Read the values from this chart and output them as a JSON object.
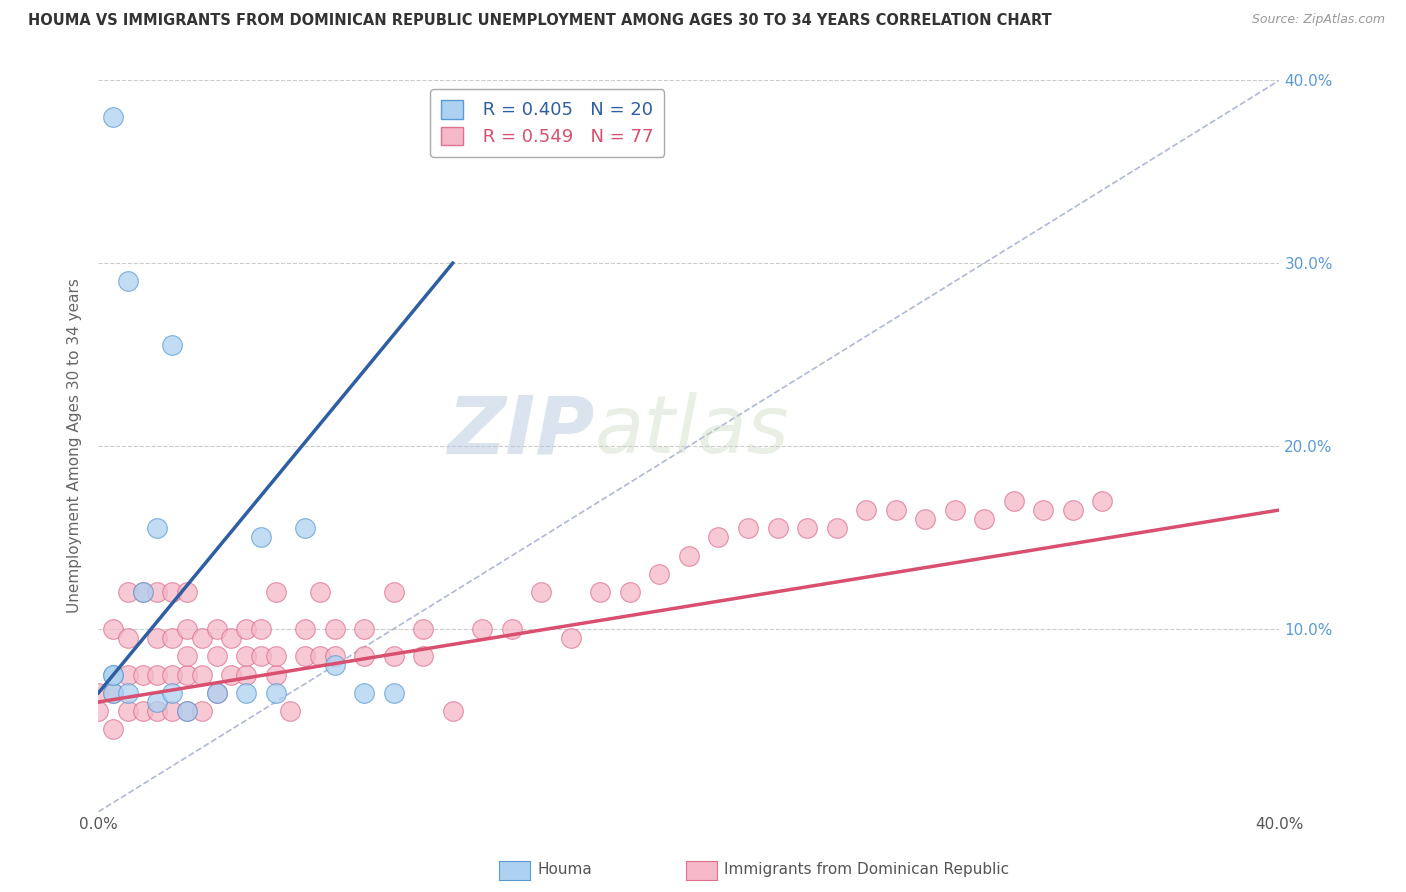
{
  "title": "HOUMA VS IMMIGRANTS FROM DOMINICAN REPUBLIC UNEMPLOYMENT AMONG AGES 30 TO 34 YEARS CORRELATION CHART",
  "source": "Source: ZipAtlas.com",
  "ylabel": "Unemployment Among Ages 30 to 34 years",
  "xlim": [
    0.0,
    0.4
  ],
  "ylim": [
    0.0,
    0.4
  ],
  "xticks": [
    0.0,
    0.1,
    0.2,
    0.3,
    0.4
  ],
  "yticks": [
    0.0,
    0.1,
    0.2,
    0.3,
    0.4
  ],
  "xticklabels": [
    "0.0%",
    "",
    "",
    "",
    "40.0%"
  ],
  "yticklabels_right": [
    "",
    "10.0%",
    "20.0%",
    "30.0%",
    "40.0%"
  ],
  "tick_color": "#5B9BD5",
  "houma_color": "#ADD1F0",
  "houma_edge_color": "#5B9BD5",
  "immigrants_color": "#F4B8C8",
  "immigrants_edge_color": "#E07090",
  "houma_R": 0.405,
  "houma_N": 20,
  "immigrants_R": 0.549,
  "immigrants_N": 77,
  "houma_line_color": "#2E5FA3",
  "immigrants_line_color": "#D94F6F",
  "diagonal_color": "#B0B8D8",
  "background_color": "#FFFFFF",
  "watermark_zip": "ZIP",
  "watermark_atlas": "atlas",
  "houma_x": [
    0.005,
    0.005,
    0.005,
    0.005,
    0.01,
    0.01,
    0.015,
    0.02,
    0.02,
    0.025,
    0.025,
    0.03,
    0.04,
    0.05,
    0.055,
    0.06,
    0.07,
    0.08,
    0.09,
    0.1
  ],
  "houma_y": [
    0.065,
    0.075,
    0.075,
    0.38,
    0.065,
    0.29,
    0.12,
    0.06,
    0.155,
    0.065,
    0.255,
    0.055,
    0.065,
    0.065,
    0.15,
    0.065,
    0.155,
    0.08,
    0.065,
    0.065
  ],
  "houma_line_x": [
    0.0,
    0.12
  ],
  "houma_line_y": [
    0.065,
    0.3
  ],
  "immigrants_x": [
    0.0,
    0.0,
    0.005,
    0.005,
    0.005,
    0.01,
    0.01,
    0.01,
    0.01,
    0.015,
    0.015,
    0.015,
    0.02,
    0.02,
    0.02,
    0.02,
    0.025,
    0.025,
    0.025,
    0.025,
    0.03,
    0.03,
    0.03,
    0.03,
    0.03,
    0.035,
    0.035,
    0.035,
    0.04,
    0.04,
    0.04,
    0.045,
    0.045,
    0.05,
    0.05,
    0.05,
    0.055,
    0.055,
    0.06,
    0.06,
    0.06,
    0.065,
    0.07,
    0.07,
    0.075,
    0.075,
    0.08,
    0.08,
    0.09,
    0.09,
    0.1,
    0.1,
    0.11,
    0.11,
    0.12,
    0.13,
    0.14,
    0.15,
    0.16,
    0.17,
    0.18,
    0.19,
    0.2,
    0.21,
    0.22,
    0.23,
    0.24,
    0.25,
    0.26,
    0.27,
    0.28,
    0.29,
    0.3,
    0.31,
    0.32,
    0.33,
    0.34
  ],
  "immigrants_y": [
    0.055,
    0.065,
    0.045,
    0.065,
    0.1,
    0.055,
    0.075,
    0.095,
    0.12,
    0.055,
    0.075,
    0.12,
    0.055,
    0.075,
    0.095,
    0.12,
    0.055,
    0.075,
    0.095,
    0.12,
    0.055,
    0.075,
    0.085,
    0.1,
    0.12,
    0.055,
    0.075,
    0.095,
    0.065,
    0.085,
    0.1,
    0.075,
    0.095,
    0.075,
    0.085,
    0.1,
    0.085,
    0.1,
    0.075,
    0.085,
    0.12,
    0.055,
    0.085,
    0.1,
    0.085,
    0.12,
    0.085,
    0.1,
    0.085,
    0.1,
    0.085,
    0.12,
    0.085,
    0.1,
    0.055,
    0.1,
    0.1,
    0.12,
    0.095,
    0.12,
    0.12,
    0.13,
    0.14,
    0.15,
    0.155,
    0.155,
    0.155,
    0.155,
    0.165,
    0.165,
    0.16,
    0.165,
    0.16,
    0.17,
    0.165,
    0.165,
    0.17
  ],
  "immigrants_line_x": [
    0.0,
    0.4
  ],
  "immigrants_line_y": [
    0.06,
    0.165
  ]
}
